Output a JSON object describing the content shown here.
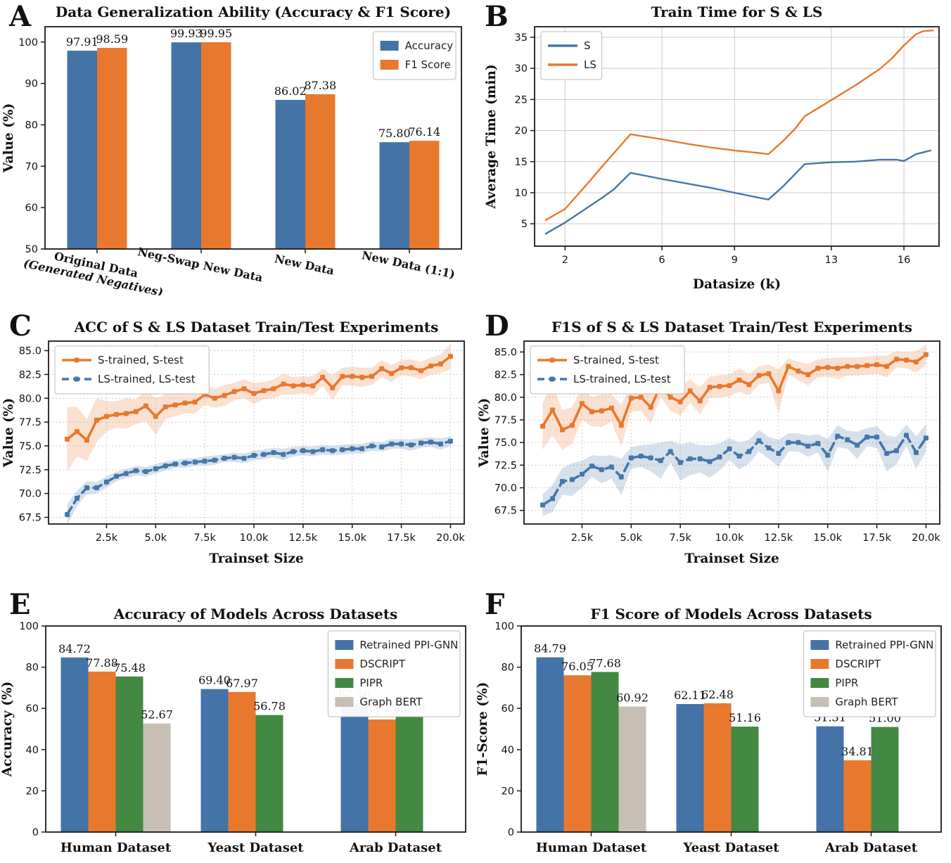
{
  "chart_data": [
    {
      "panel_label": "A",
      "type": "bar",
      "title": "Data Generalization Ability (Accuracy & F1 Score)",
      "ylabel": "Value (%)",
      "categories": [
        "Original Data|(Generated Negatives)",
        "Neg-Swap New Data",
        "New Data",
        "New Data (1:1)"
      ],
      "series": [
        {
          "name": "Accuracy",
          "color": "#4473a7",
          "values": [
            97.91,
            99.93,
            86.02,
            75.8
          ]
        },
        {
          "name": "F1 Score",
          "color": "#e8782e",
          "values": [
            98.59,
            99.95,
            87.38,
            76.14
          ]
        }
      ],
      "ylim": [
        50,
        103.7
      ],
      "yticks": [
        50,
        60,
        70,
        80,
        90,
        100
      ],
      "grid": "none",
      "legend_position": "top-right",
      "bar_labels": true,
      "xtick_rotation": 12,
      "bar_frac": 0.287
    },
    {
      "panel_label": "B",
      "type": "line",
      "title": "Train Time for S & LS",
      "xlabel": "Datasize (k)",
      "ylabel": "Average Time (min)",
      "xlim": [
        0.74,
        17.45
      ],
      "ylim": [
        1.4,
        36.7
      ],
      "xticks": [
        2,
        6,
        9,
        13,
        16
      ],
      "yticks": [
        5,
        10,
        15,
        20,
        25,
        30,
        35
      ],
      "ytick_decimals": 0,
      "grid": "solid",
      "legend_position": "top-left",
      "series": [
        {
          "name": "S",
          "color": "#4577a9",
          "style": "solid",
          "x": [
            1.2,
            2,
            2.5,
            3,
            3.5,
            4,
            4.7,
            6,
            7,
            8,
            9,
            10,
            10.4,
            11,
            11.9,
            13,
            14,
            15,
            15.7,
            16,
            16.5,
            17.1
          ],
          "y": [
            3.4,
            5.2,
            6.5,
            7.8,
            9.1,
            10.5,
            13.2,
            12.2,
            11.5,
            10.8,
            10.0,
            9.2,
            8.9,
            11.0,
            14.6,
            14.9,
            15.0,
            15.3,
            15.3,
            15.1,
            16.2,
            16.8
          ]
        },
        {
          "name": "LS",
          "color": "#e8782e",
          "style": "solid",
          "x": [
            1.2,
            2,
            2.5,
            3,
            3.5,
            4,
            4.7,
            6,
            7,
            8,
            9,
            10,
            10.4,
            11,
            11.5,
            11.9,
            13,
            14,
            15,
            15.5,
            16,
            16.5,
            16.8,
            17.2
          ],
          "y": [
            5.6,
            7.4,
            9.6,
            11.8,
            14.1,
            16.3,
            19.4,
            18.6,
            17.9,
            17.3,
            16.8,
            16.4,
            16.2,
            18.3,
            20.3,
            22.3,
            24.9,
            27.3,
            29.9,
            31.6,
            33.7,
            35.5,
            36.0,
            36.1
          ]
        }
      ]
    },
    {
      "panel_label": "C",
      "type": "line",
      "title": "ACC of S & LS Dataset Train/Test Experiments",
      "xlabel": "Trainset Size",
      "ylabel": "Value (%)",
      "xlim": [
        -450,
        20700
      ],
      "ylim": [
        66.8,
        86.0
      ],
      "xticks": [
        2500,
        5000,
        7500,
        10000,
        12500,
        15000,
        17500,
        20000
      ],
      "xtick_labels": [
        "2.5k",
        "5.0k",
        "7.5k",
        "10.0k",
        "12.5k",
        "15.0k",
        "17.5k",
        "20.0k"
      ],
      "yticks": [
        67.5,
        70.0,
        72.5,
        75.0,
        77.5,
        80.0,
        82.5,
        85.0
      ],
      "ytick_decimals": 1,
      "grid": "dashed",
      "legend_position": "top-left",
      "x_start": 500,
      "x_step": 500,
      "series": [
        {
          "name": "S-trained, S-test",
          "color": "#e8782e",
          "style": "solid",
          "marker": true,
          "values": [
            75.7,
            76.5,
            75.6,
            77.7,
            78.1,
            78.3,
            78.4,
            78.6,
            79.2,
            78.1,
            79.1,
            79.3,
            79.5,
            79.6,
            80.4,
            80.0,
            80.3,
            80.7,
            81.0,
            80.5,
            80.8,
            81.0,
            81.5,
            81.3,
            81.4,
            81.3,
            82.2,
            81.1,
            82.3,
            82.3,
            82.2,
            82.3,
            83.1,
            82.6,
            83.2,
            83.2,
            82.9,
            83.4,
            83.6,
            84.4
          ],
          "band": [
            3.4,
            2.6,
            2.2,
            2.3,
            1.6,
            1.4,
            1.6,
            1.3,
            1.6,
            1.9,
            1.3,
            1.2,
            1.1,
            1.2,
            1.1,
            1.0,
            1.1,
            0.9,
            1.0,
            1.1,
            0.9,
            1.0,
            1.1,
            0.9,
            0.9,
            1.0,
            0.9,
            1.3,
            0.9,
            1.0,
            1.0,
            0.9,
            0.9,
            0.9,
            0.8,
            0.9,
            0.9,
            0.9,
            1.0,
            1.3
          ]
        },
        {
          "name": "LS-trained, LS-test",
          "color": "#4577a9",
          "style": "dashed",
          "marker": true,
          "values": [
            67.8,
            69.5,
            70.6,
            70.6,
            71.2,
            71.8,
            72.1,
            72.4,
            72.3,
            72.6,
            72.9,
            73.1,
            73.2,
            73.3,
            73.4,
            73.5,
            73.7,
            73.8,
            73.7,
            74.0,
            74.1,
            74.3,
            74.1,
            74.4,
            74.5,
            74.4,
            74.6,
            74.5,
            74.6,
            74.7,
            74.7,
            75.0,
            74.9,
            75.2,
            75.2,
            75.1,
            75.3,
            75.4,
            75.2,
            75.5
          ],
          "band": [
            1.1,
            0.8,
            0.7,
            0.6,
            0.6,
            0.5,
            0.5,
            0.5,
            0.5,
            0.5,
            0.5,
            0.4,
            0.5,
            0.4,
            0.5,
            0.5,
            0.4,
            0.5,
            0.5,
            0.5,
            0.5,
            0.5,
            0.6,
            0.5,
            0.5,
            0.5,
            0.5,
            0.5,
            0.5,
            0.5,
            0.5,
            0.5,
            0.5,
            0.5,
            0.5,
            0.6,
            0.5,
            0.5,
            0.6,
            0.5
          ]
        }
      ]
    },
    {
      "panel_label": "D",
      "type": "line",
      "title": "F1S of S & LS Dataset Train/Test Experiments",
      "xlabel": "Trainset Size",
      "ylabel": "Value (%)",
      "xlim": [
        -450,
        20700
      ],
      "ylim": [
        66.0,
        86.2
      ],
      "xticks": [
        2500,
        5000,
        7500,
        10000,
        12500,
        15000,
        17500,
        20000
      ],
      "xtick_labels": [
        "2.5k",
        "5.0k",
        "7.5k",
        "10.0k",
        "12.5k",
        "15.0k",
        "17.5k",
        "20.0k"
      ],
      "yticks": [
        67.5,
        70.0,
        72.5,
        75.0,
        77.5,
        80.0,
        82.5,
        85.0
      ],
      "ytick_decimals": 1,
      "grid": "dashed",
      "legend_position": "top-left",
      "x_start": 500,
      "x_step": 500,
      "series": [
        {
          "name": "S-trained, S-test",
          "color": "#e8782e",
          "style": "solid",
          "marker": true,
          "values": [
            76.8,
            78.6,
            76.4,
            76.9,
            79.3,
            78.4,
            78.5,
            78.8,
            76.9,
            79.9,
            80.0,
            78.9,
            81.3,
            80.0,
            79.5,
            80.7,
            79.6,
            81.1,
            81.2,
            81.3,
            81.9,
            81.4,
            82.4,
            82.6,
            80.7,
            83.4,
            82.9,
            82.5,
            83.2,
            83.3,
            83.2,
            83.4,
            83.4,
            83.5,
            83.6,
            83.4,
            84.2,
            84.1,
            83.9,
            84.7
          ],
          "band": [
            2.6,
            2.8,
            2.2,
            2.0,
            1.8,
            1.6,
            1.8,
            1.5,
            2.3,
            1.5,
            1.5,
            1.8,
            1.3,
            1.5,
            1.5,
            1.3,
            1.5,
            1.2,
            1.2,
            1.2,
            1.3,
            1.2,
            1.0,
            1.0,
            2.4,
            0.9,
            1.0,
            1.2,
            1.0,
            1.0,
            1.2,
            1.0,
            1.0,
            1.0,
            1.0,
            1.2,
            0.9,
            0.9,
            1.2,
            1.1
          ]
        },
        {
          "name": "LS-trained, LS-test",
          "color": "#4577a9",
          "style": "dashed",
          "marker": true,
          "values": [
            68.1,
            68.8,
            70.7,
            70.9,
            71.5,
            72.4,
            72.0,
            72.3,
            71.2,
            73.3,
            73.5,
            73.3,
            73.0,
            74.0,
            72.8,
            73.2,
            73.2,
            72.9,
            73.4,
            74.3,
            73.5,
            74.0,
            75.2,
            74.4,
            73.8,
            75.0,
            75.0,
            74.6,
            74.9,
            73.6,
            75.7,
            75.3,
            74.7,
            75.6,
            75.6,
            73.8,
            74.1,
            75.8,
            73.9,
            75.5
          ],
          "band": [
            1.2,
            1.5,
            1.5,
            1.8,
            1.5,
            1.2,
            1.5,
            1.3,
            2.0,
            1.2,
            1.2,
            1.5,
            2.0,
            1.2,
            2.0,
            1.8,
            1.5,
            1.8,
            1.5,
            1.2,
            1.5,
            1.3,
            1.2,
            1.2,
            1.5,
            1.0,
            1.0,
            1.2,
            1.0,
            1.8,
            1.2,
            1.0,
            1.5,
            1.0,
            1.2,
            2.0,
            1.5,
            1.2,
            1.8,
            1.5
          ]
        }
      ]
    },
    {
      "panel_label": "E",
      "type": "bar",
      "title": "Accuracy of Models Across Datasets",
      "ylabel": "Accuracy (%)",
      "categories": [
        "Human Dataset",
        "Yeast Dataset",
        "Arab Dataset"
      ],
      "series": [
        {
          "name": "Retrained PPI-GNN",
          "color": "#4473a7",
          "values": [
            84.72,
            69.4,
            62.8
          ]
        },
        {
          "name": "DSCRIPT",
          "color": "#e8782e",
          "values": [
            77.88,
            67.97,
            54.63
          ]
        },
        {
          "name": "PIPR",
          "color": "#438843",
          "values": [
            75.48,
            56.78,
            55.88
          ]
        },
        {
          "name": "Graph BERT",
          "color": "#c7beb4",
          "values": [
            52.67,
            null,
            null
          ]
        }
      ],
      "ylim": [
        0,
        100
      ],
      "yticks": [
        0,
        20,
        40,
        60,
        80,
        100
      ],
      "grid": "none",
      "legend_position": "top-right",
      "bar_labels": true,
      "bar_frac": 0.196
    },
    {
      "panel_label": "F",
      "type": "bar",
      "title": "F1 Score of Models Across Datasets",
      "ylabel": "F1-Score (%)",
      "categories": [
        "Human Dataset",
        "Yeast Dataset",
        "Arab Dataset"
      ],
      "series": [
        {
          "name": "Retrained PPI-GNN",
          "color": "#4473a7",
          "values": [
            84.79,
            62.11,
            51.31
          ]
        },
        {
          "name": "DSCRIPT",
          "color": "#e8782e",
          "values": [
            76.05,
            62.48,
            34.81
          ]
        },
        {
          "name": "PIPR",
          "color": "#438843",
          "values": [
            77.68,
            51.16,
            51.0
          ]
        },
        {
          "name": "Graph BERT",
          "color": "#c7beb4",
          "values": [
            60.92,
            null,
            null
          ]
        }
      ],
      "ylim": [
        0,
        100
      ],
      "yticks": [
        0,
        20,
        40,
        60,
        80,
        100
      ],
      "grid": "none",
      "legend_position": "top-right",
      "bar_labels": true,
      "bar_frac": 0.196
    }
  ],
  "style_colors": {
    "blue": "#4473a7",
    "orange": "#e8782e",
    "green": "#438843",
    "gray": "#c7beb4",
    "grid_solid": "#d6c8c6",
    "grid_dashed": "#cccccc",
    "spine": "#1a1a1a"
  }
}
